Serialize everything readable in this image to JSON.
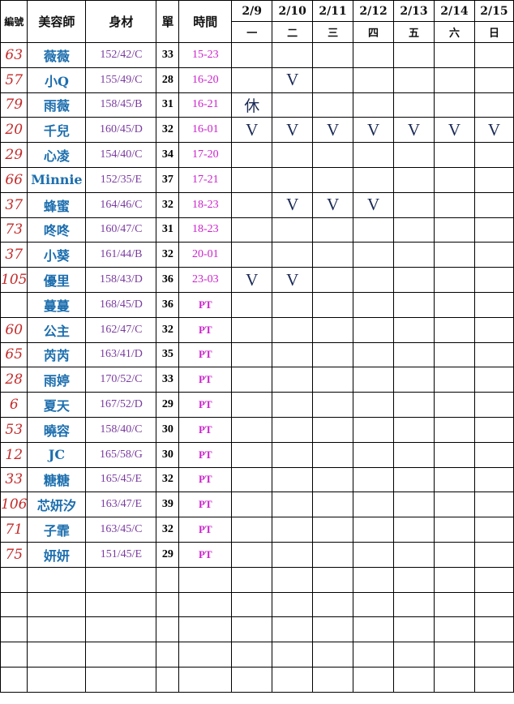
{
  "headers": {
    "id": "編號",
    "stylist": "美容師",
    "body": "身材",
    "count": "單",
    "time": "時間"
  },
  "days": [
    {
      "date": "2/9",
      "weekday": "一"
    },
    {
      "date": "2/10",
      "weekday": "二"
    },
    {
      "date": "2/11",
      "weekday": "三"
    },
    {
      "date": "2/12",
      "weekday": "四"
    },
    {
      "date": "2/13",
      "weekday": "五"
    },
    {
      "date": "2/14",
      "weekday": "六"
    },
    {
      "date": "2/15",
      "weekday": "日"
    }
  ],
  "rows": [
    {
      "id": "63",
      "name": "薇薇",
      "body": "152/42/C",
      "count": "33",
      "time": "15-23",
      "marks": [
        "",
        "",
        "",
        "",
        "",
        "",
        ""
      ]
    },
    {
      "id": "57",
      "name": "小Q",
      "body": "155/49/C",
      "count": "28",
      "time": "16-20",
      "marks": [
        "",
        "V",
        "",
        "",
        "",
        "",
        ""
      ]
    },
    {
      "id": "79",
      "name": "雨薇",
      "body": "158/45/B",
      "count": "31",
      "time": "16-21",
      "marks": [
        "休",
        "",
        "",
        "",
        "",
        "",
        ""
      ]
    },
    {
      "id": "20",
      "name": "千兒",
      "body": "160/45/D",
      "count": "32",
      "time": "16-01",
      "marks": [
        "V",
        "V",
        "V",
        "V",
        "V",
        "V",
        "V"
      ]
    },
    {
      "id": "29",
      "name": "心凌",
      "body": "154/40/C",
      "count": "34",
      "time": "17-20",
      "marks": [
        "",
        "",
        "",
        "",
        "",
        "",
        ""
      ]
    },
    {
      "id": "66",
      "name": "Minnie",
      "body": "152/35/E",
      "count": "37",
      "time": "17-21",
      "marks": [
        "",
        "",
        "",
        "",
        "",
        "",
        ""
      ]
    },
    {
      "id": "37",
      "name": "蜂蜜",
      "body": "164/46/C",
      "count": "32",
      "time": "18-23",
      "marks": [
        "",
        "V",
        "V",
        "V",
        "",
        "",
        ""
      ]
    },
    {
      "id": "73",
      "name": "咚咚",
      "body": "160/47/C",
      "count": "31",
      "time": "18-23",
      "marks": [
        "",
        "",
        "",
        "",
        "",
        "",
        ""
      ]
    },
    {
      "id": "37",
      "name": "小葵",
      "body": "161/44/B",
      "count": "32",
      "time": "20-01",
      "marks": [
        "",
        "",
        "",
        "",
        "",
        "",
        ""
      ]
    },
    {
      "id": "105",
      "name": "優里",
      "body": "158/43/D",
      "count": "36",
      "time": "23-03",
      "marks": [
        "V",
        "V",
        "",
        "",
        "",
        "",
        ""
      ]
    },
    {
      "id": "",
      "name": "蔓蔓",
      "body": "168/45/D",
      "count": "36",
      "time": "PT",
      "marks": [
        "",
        "",
        "",
        "",
        "",
        "",
        ""
      ]
    },
    {
      "id": "60",
      "name": "公主",
      "body": "162/47/C",
      "count": "32",
      "time": "PT",
      "marks": [
        "",
        "",
        "",
        "",
        "",
        "",
        ""
      ]
    },
    {
      "id": "65",
      "name": "芮芮",
      "body": "163/41/D",
      "count": "35",
      "time": "PT",
      "marks": [
        "",
        "",
        "",
        "",
        "",
        "",
        ""
      ]
    },
    {
      "id": "28",
      "name": "雨婷",
      "body": "170/52/C",
      "count": "33",
      "time": "PT",
      "marks": [
        "",
        "",
        "",
        "",
        "",
        "",
        ""
      ]
    },
    {
      "id": "6",
      "name": "夏天",
      "body": "167/52/D",
      "count": "29",
      "time": "PT",
      "marks": [
        "",
        "",
        "",
        "",
        "",
        "",
        ""
      ]
    },
    {
      "id": "53",
      "name": "曉容",
      "body": "158/40/C",
      "count": "30",
      "time": "PT",
      "marks": [
        "",
        "",
        "",
        "",
        "",
        "",
        ""
      ]
    },
    {
      "id": "12",
      "name": "JC",
      "body": "165/58/G",
      "count": "30",
      "time": "PT",
      "marks": [
        "",
        "",
        "",
        "",
        "",
        "",
        ""
      ]
    },
    {
      "id": "33",
      "name": "糖糖",
      "body": "165/45/E",
      "count": "32",
      "time": "PT",
      "marks": [
        "",
        "",
        "",
        "",
        "",
        "",
        ""
      ]
    },
    {
      "id": "106",
      "name": "芯妍汐",
      "body": "163/47/E",
      "count": "39",
      "time": "PT",
      "marks": [
        "",
        "",
        "",
        "",
        "",
        "",
        ""
      ]
    },
    {
      "id": "71",
      "name": "子霏",
      "body": "163/45/C",
      "count": "32",
      "time": "PT",
      "marks": [
        "",
        "",
        "",
        "",
        "",
        "",
        ""
      ]
    },
    {
      "id": "75",
      "name": "妍妍",
      "body": "151/45/E",
      "count": "29",
      "time": "PT",
      "marks": [
        "",
        "",
        "",
        "",
        "",
        "",
        ""
      ]
    },
    {
      "id": "",
      "name": "",
      "body": "",
      "count": "",
      "time": "",
      "marks": [
        "",
        "",
        "",
        "",
        "",
        "",
        ""
      ]
    },
    {
      "id": "",
      "name": "",
      "body": "",
      "count": "",
      "time": "",
      "marks": [
        "",
        "",
        "",
        "",
        "",
        "",
        ""
      ]
    },
    {
      "id": "",
      "name": "",
      "body": "",
      "count": "",
      "time": "",
      "marks": [
        "",
        "",
        "",
        "",
        "",
        "",
        ""
      ]
    },
    {
      "id": "",
      "name": "",
      "body": "",
      "count": "",
      "time": "",
      "marks": [
        "",
        "",
        "",
        "",
        "",
        "",
        ""
      ]
    },
    {
      "id": "",
      "name": "",
      "body": "",
      "count": "",
      "time": "",
      "marks": [
        "",
        "",
        "",
        "",
        "",
        "",
        ""
      ]
    }
  ],
  "colors": {
    "id": "#c42a2a",
    "name": "#1c6eae",
    "body": "#7a3c9e",
    "time": "#cc22cc",
    "mark": "#1b2a55"
  }
}
